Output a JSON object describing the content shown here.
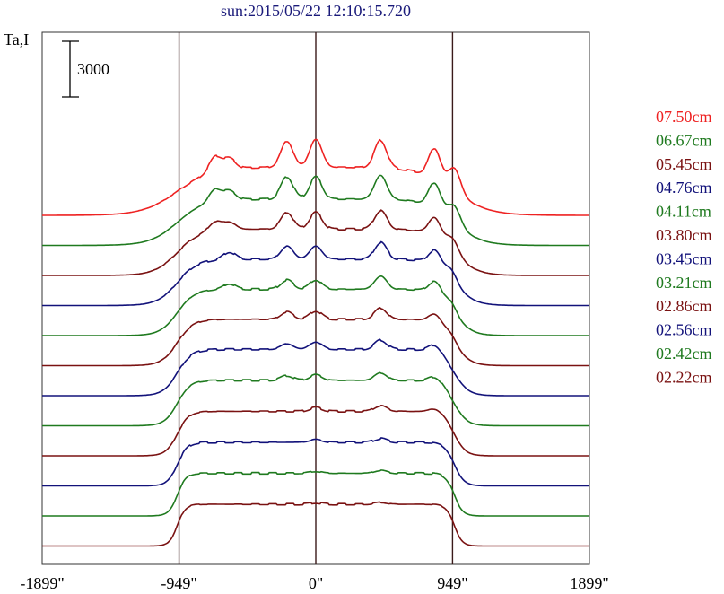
{
  "chart_data": {
    "type": "line",
    "title": "sun:2015/05/22 12:10:15.720",
    "ylabel": "Ta,I",
    "scale_bar_label": "3000",
    "x_tick_labels": [
      "-1899\"",
      "-949\"",
      "0\"",
      "949\"",
      "1899\""
    ],
    "x_ticks": [
      -1899,
      -949,
      0,
      949,
      1899
    ],
    "xlim": [
      -1899,
      1899
    ],
    "vertical_reference_lines": [
      -949,
      0,
      949
    ],
    "series": [
      {
        "name": "07.50cm",
        "color": "#ee2222",
        "base": 0,
        "peak": 5400,
        "limb_width": 120,
        "disk_level": 2600,
        "bumps": [
          [
            -700,
            900
          ],
          [
            -600,
            600
          ],
          [
            -200,
            1400
          ],
          [
            0,
            1500
          ],
          [
            450,
            1500
          ],
          [
            830,
            2200
          ],
          [
            970,
            2600
          ]
        ]
      },
      {
        "name": "06.67cm",
        "color": "#1f7a1f",
        "base": 0,
        "peak": 4700,
        "limb_width": 95,
        "disk_level": 2500,
        "bumps": [
          [
            -700,
            700
          ],
          [
            -600,
            500
          ],
          [
            -200,
            1200
          ],
          [
            0,
            1200
          ],
          [
            450,
            1300
          ],
          [
            830,
            1700
          ],
          [
            970,
            1900
          ]
        ]
      },
      {
        "name": "05.45cm",
        "color": "#7a1212",
        "base": 0,
        "peak": 4300,
        "limb_width": 80,
        "disk_level": 2500,
        "bumps": [
          [
            -700,
            500
          ],
          [
            -600,
            400
          ],
          [
            -200,
            900
          ],
          [
            0,
            900
          ],
          [
            450,
            1000
          ],
          [
            830,
            1200
          ],
          [
            960,
            1300
          ]
        ]
      },
      {
        "name": "04.76cm",
        "color": "#12127a",
        "base": 0,
        "peak": 3950,
        "limb_width": 70,
        "disk_level": 2500,
        "bumps": [
          [
            -600,
            400
          ],
          [
            -200,
            700
          ],
          [
            0,
            700
          ],
          [
            450,
            900
          ],
          [
            830,
            900
          ],
          [
            950,
            900
          ]
        ]
      },
      {
        "name": "04.11cm",
        "color": "#1f7a1f",
        "base": 0,
        "peak": 3650,
        "limb_width": 60,
        "disk_level": 2500,
        "bumps": [
          [
            -600,
            300
          ],
          [
            -200,
            500
          ],
          [
            0,
            500
          ],
          [
            450,
            700
          ],
          [
            830,
            700
          ],
          [
            950,
            600
          ]
        ]
      },
      {
        "name": "03.80cm",
        "color": "#7a1212",
        "base": 0,
        "peak": 3450,
        "limb_width": 55,
        "disk_level": 2500,
        "bumps": [
          [
            -200,
            400
          ],
          [
            0,
            450
          ],
          [
            450,
            600
          ],
          [
            830,
            500
          ],
          [
            950,
            400
          ]
        ]
      },
      {
        "name": "03.45cm",
        "color": "#12127a",
        "base": 0,
        "peak": 3250,
        "limb_width": 50,
        "disk_level": 2500,
        "bumps": [
          [
            -200,
            300
          ],
          [
            0,
            400
          ],
          [
            450,
            500
          ],
          [
            830,
            400
          ]
        ]
      },
      {
        "name": "03.21cm",
        "color": "#1f7a1f",
        "base": 0,
        "peak": 3100,
        "limb_width": 45,
        "disk_level": 2450,
        "bumps": [
          [
            -200,
            250
          ],
          [
            0,
            300
          ],
          [
            450,
            400
          ],
          [
            830,
            300
          ]
        ]
      },
      {
        "name": "02.86cm",
        "color": "#7a1212",
        "base": 0,
        "peak": 2900,
        "limb_width": 40,
        "disk_level": 2400,
        "bumps": [
          [
            0,
            200
          ],
          [
            450,
            300
          ],
          [
            830,
            200
          ]
        ]
      },
      {
        "name": "02.56cm",
        "color": "#12127a",
        "base": 0,
        "peak": 2750,
        "limb_width": 35,
        "disk_level": 2350,
        "bumps": [
          [
            0,
            150
          ],
          [
            450,
            200
          ]
        ]
      },
      {
        "name": "02.42cm",
        "color": "#1f7a1f",
        "base": 0,
        "peak": 2650,
        "limb_width": 30,
        "disk_level": 2300,
        "bumps": [
          [
            0,
            100
          ],
          [
            450,
            150
          ]
        ]
      },
      {
        "name": "02.22cm",
        "color": "#7a1212",
        "base": 0,
        "peak": 2500,
        "limb_width": 28,
        "disk_level": 2250,
        "bumps": [
          [
            0,
            80
          ],
          [
            450,
            100
          ]
        ]
      }
    ]
  }
}
